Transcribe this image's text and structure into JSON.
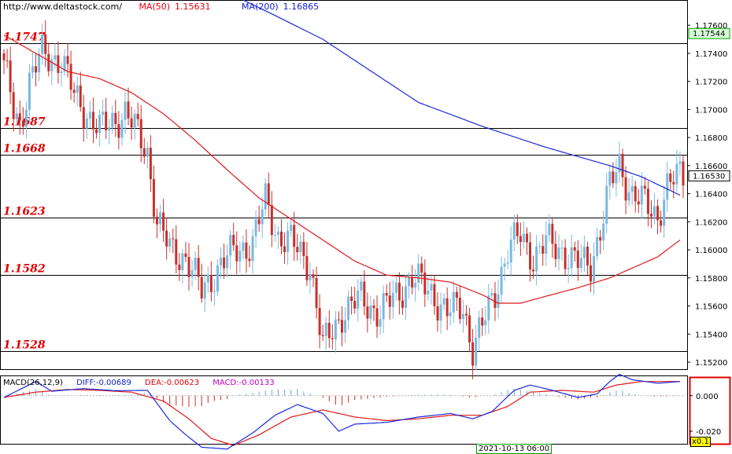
{
  "header": {
    "site": "http://www.deltastock.com/",
    "ma50_label": "MA(50)",
    "ma50_value": "1.15631",
    "ma200_label": "MA(200)",
    "ma200_value": "1.16865"
  },
  "macd_header": {
    "name": "MACD(26,12,9)",
    "diff": "DIFF:-0.00689",
    "dea": "DEA:-0.00623",
    "macd": "MACD:-0.00133"
  },
  "date_label": "2021-10-13 06:00",
  "scale_label": "x0.1",
  "colors": {
    "up": "#7ab8e0",
    "down": "#c8302a",
    "ma50": "#e01818",
    "ma200": "#1a2ad8",
    "diff": "#1a2ad8",
    "dea": "#e01818"
  },
  "chart_data": [
    {
      "type": "candlestick",
      "title": "",
      "ylim": [
        1.1515,
        1.1778
      ],
      "yticks": [
        "1.17600",
        "1.17400",
        "1.17200",
        "1.17000",
        "1.16800",
        "1.16600",
        "1.16400",
        "1.16200",
        "1.16000",
        "1.15800",
        "1.15600",
        "1.15400",
        "1.15200"
      ],
      "current_price": "1.16530",
      "top_price": "1.17544",
      "levels": [
        {
          "value": 1.1747,
          "label": "1.1747"
        },
        {
          "value": 1.1687,
          "label": "1.1687"
        },
        {
          "value": 1.1668,
          "label": "1.1668"
        },
        {
          "value": 1.1623,
          "label": "1.1623"
        },
        {
          "value": 1.1582,
          "label": "1.1582"
        },
        {
          "value": 1.1528,
          "label": "1.1528"
        }
      ],
      "close_anchors": [
        [
          0,
          1.173
        ],
        [
          3,
          1.17
        ],
        [
          5,
          1.169
        ],
        [
          8,
          1.172
        ],
        [
          12,
          1.174
        ],
        [
          18,
          1.1735
        ],
        [
          22,
          1.171
        ],
        [
          30,
          1.1685
        ],
        [
          38,
          1.1698
        ],
        [
          45,
          1.167
        ],
        [
          48,
          1.162
        ],
        [
          52,
          1.16
        ],
        [
          57,
          1.1595
        ],
        [
          62,
          1.157
        ],
        [
          68,
          1.159
        ],
        [
          73,
          1.16
        ],
        [
          78,
          1.1605
        ],
        [
          82,
          1.1635
        ],
        [
          86,
          1.161
        ],
        [
          90,
          1.1605
        ],
        [
          96,
          1.159
        ],
        [
          100,
          1.153
        ],
        [
          106,
          1.1555
        ],
        [
          112,
          1.1565
        ],
        [
          118,
          1.1555
        ],
        [
          124,
          1.157
        ],
        [
          128,
          1.158
        ],
        [
          134,
          1.157
        ],
        [
          139,
          1.1555
        ],
        [
          144,
          1.156
        ],
        [
          147,
          1.153
        ],
        [
          150,
          1.1545
        ],
        [
          154,
          1.157
        ],
        [
          158,
          1.16
        ],
        [
          162,
          1.161
        ],
        [
          166,
          1.1595
        ],
        [
          170,
          1.1605
        ],
        [
          175,
          1.16
        ],
        [
          180,
          1.159
        ],
        [
          184,
          1.159
        ],
        [
          187,
          1.1615
        ],
        [
          190,
          1.1645
        ],
        [
          193,
          1.166
        ],
        [
          197,
          1.164
        ],
        [
          202,
          1.163
        ],
        [
          205,
          1.1625
        ],
        [
          208,
          1.1645
        ],
        [
          212,
          1.1653
        ]
      ],
      "ma50": [
        [
          0,
          1.1753
        ],
        [
          10,
          1.174
        ],
        [
          20,
          1.1727
        ],
        [
          30,
          1.1722
        ],
        [
          40,
          1.1712
        ],
        [
          50,
          1.1697
        ],
        [
          60,
          1.1678
        ],
        [
          70,
          1.1657
        ],
        [
          80,
          1.1637
        ],
        [
          90,
          1.1622
        ],
        [
          100,
          1.1607
        ],
        [
          110,
          1.1592
        ],
        [
          120,
          1.1582
        ],
        [
          130,
          1.158
        ],
        [
          140,
          1.1577
        ],
        [
          150,
          1.1568
        ],
        [
          155,
          1.1562
        ],
        [
          162,
          1.1562
        ],
        [
          170,
          1.1567
        ],
        [
          180,
          1.1573
        ],
        [
          190,
          1.158
        ],
        [
          200,
          1.159
        ],
        [
          205,
          1.1595
        ],
        [
          212,
          1.1607
        ]
      ],
      "ma200": [
        [
          75,
          1.1778
        ],
        [
          85,
          1.1767
        ],
        [
          100,
          1.175
        ],
        [
          110,
          1.1735
        ],
        [
          120,
          1.172
        ],
        [
          130,
          1.1705
        ],
        [
          150,
          1.1688
        ],
        [
          170,
          1.1673
        ],
        [
          190,
          1.166
        ],
        [
          200,
          1.1652
        ],
        [
          212,
          1.1639
        ]
      ]
    },
    {
      "type": "macd",
      "title": "",
      "ylim": [
        -0.0275,
        0.0105
      ],
      "yticks": [
        "0.000",
        "-0.020"
      ],
      "diff": [
        [
          0,
          -0.001
        ],
        [
          10,
          0.008
        ],
        [
          15,
          0.0025
        ],
        [
          25,
          0.004
        ],
        [
          35,
          0.0028
        ],
        [
          45,
          0.003
        ],
        [
          52,
          -0.014
        ],
        [
          57,
          -0.022
        ],
        [
          62,
          -0.029
        ],
        [
          70,
          -0.03
        ],
        [
          78,
          -0.021
        ],
        [
          85,
          -0.011
        ],
        [
          92,
          -0.005
        ],
        [
          100,
          -0.01
        ],
        [
          105,
          -0.02
        ],
        [
          110,
          -0.016
        ],
        [
          120,
          -0.015
        ],
        [
          130,
          -0.012
        ],
        [
          140,
          -0.01
        ],
        [
          147,
          -0.013
        ],
        [
          153,
          -0.009
        ],
        [
          160,
          0.003
        ],
        [
          165,
          0.006
        ],
        [
          172,
          0.003
        ],
        [
          180,
          -0.001
        ],
        [
          186,
          0.001
        ],
        [
          190,
          0.008
        ],
        [
          193,
          0.012
        ],
        [
          197,
          0.009
        ],
        [
          205,
          0.007
        ],
        [
          212,
          0.008
        ]
      ],
      "dea": [
        [
          0,
          -0.001
        ],
        [
          10,
          0.002
        ],
        [
          20,
          0.0035
        ],
        [
          30,
          0.003
        ],
        [
          40,
          0.002
        ],
        [
          50,
          -0.003
        ],
        [
          58,
          -0.013
        ],
        [
          65,
          -0.024
        ],
        [
          72,
          -0.028
        ],
        [
          80,
          -0.022
        ],
        [
          90,
          -0.012
        ],
        [
          100,
          -0.008
        ],
        [
          110,
          -0.012
        ],
        [
          120,
          -0.014
        ],
        [
          130,
          -0.013
        ],
        [
          140,
          -0.011
        ],
        [
          150,
          -0.011
        ],
        [
          158,
          -0.006
        ],
        [
          165,
          0.002
        ],
        [
          175,
          0.003
        ],
        [
          185,
          0.002
        ],
        [
          192,
          0.006
        ],
        [
          200,
          0.008
        ],
        [
          212,
          0.008
        ]
      ]
    }
  ]
}
